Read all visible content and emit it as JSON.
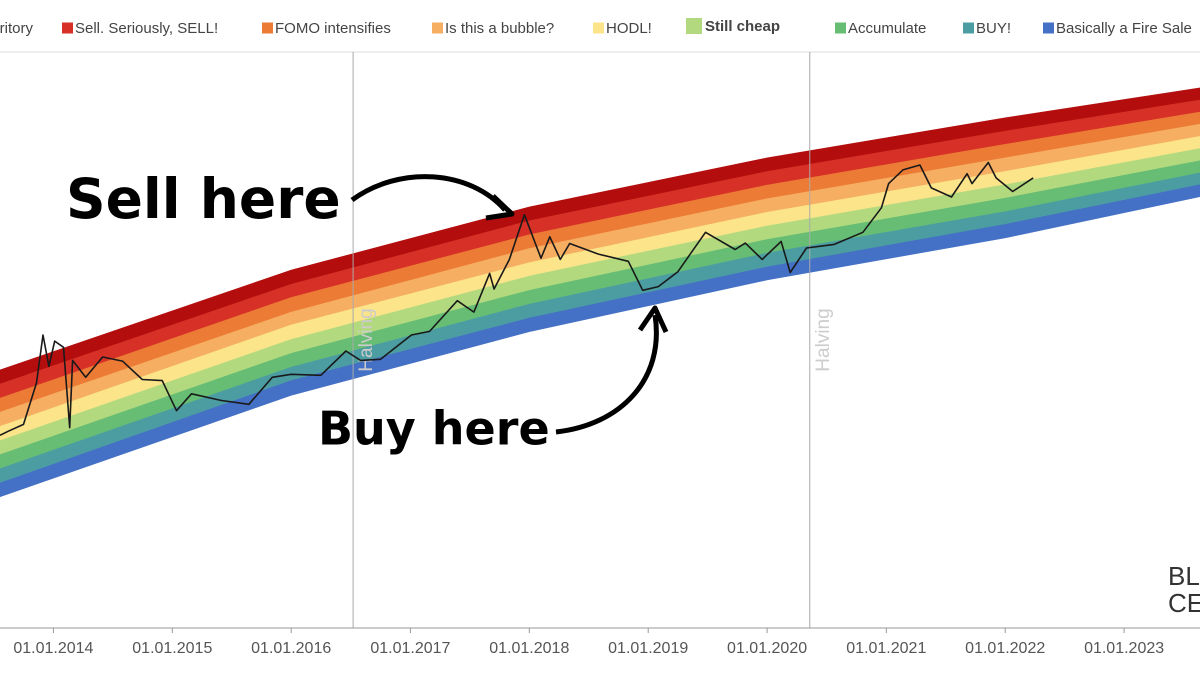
{
  "chart_data": {
    "type": "rainbow",
    "log_y": true,
    "xlim": [
      "2013-07-21",
      "2023-08-22"
    ],
    "ylim": [
      1,
      1000000
    ],
    "xticks": [
      {
        "value": "2014-01-01",
        "label": "01.01.2014"
      },
      {
        "value": "2015-01-01",
        "label": "01.01.2015"
      },
      {
        "value": "2016-01-01",
        "label": "01.01.2016"
      },
      {
        "value": "2017-01-01",
        "label": "01.01.2017"
      },
      {
        "value": "2018-01-01",
        "label": "01.01.2018"
      },
      {
        "value": "2019-01-01",
        "label": "01.01.2019"
      },
      {
        "value": "2020-01-01",
        "label": "01.01.2020"
      },
      {
        "value": "2021-01-01",
        "label": "01.01.2021"
      },
      {
        "value": "2022-01-01",
        "label": "01.01.2022"
      },
      {
        "value": "2023-01-01",
        "label": "01.01.2023"
      }
    ],
    "x": [
      "2013-07-21",
      "2016-01-01",
      "2018-01-01",
      "2020-01-01",
      "2022-01-01",
      "2023-08-22"
    ],
    "series": [
      {
        "name": "ritory",
        "color": "#b30d0d",
        "values": [
          478,
          5200,
          23500,
          76000,
          198000,
          405000
        ],
        "lows": [
          341,
          3700,
          16900,
          54800,
          144000,
          303000
        ]
      },
      {
        "name": "Sell. Seriously, SELL!",
        "color": "#d73027",
        "values": [
          341,
          3700,
          16900,
          54800,
          144000,
          303000
        ],
        "lows": [
          243,
          2700,
          12100,
          39600,
          105000,
          227000
        ]
      },
      {
        "name": "FOMO intensifies",
        "color": "#ec7b35",
        "values": [
          243,
          2700,
          12100,
          39600,
          105000,
          227000
        ],
        "lows": [
          174,
          1900,
          8700,
          28600,
          76000,
          170000
        ]
      },
      {
        "name": "Is this a bubble?",
        "color": "#f6ae62",
        "values": [
          174,
          1900,
          8700,
          28600,
          76000,
          170000
        ],
        "lows": [
          124,
          1400,
          6200,
          20700,
          55000,
          127000
        ]
      },
      {
        "name": "HODL!",
        "color": "#fbe48a",
        "values": [
          124,
          1400,
          6200,
          20700,
          55000,
          127000
        ],
        "lows": [
          88,
          990,
          4500,
          14900,
          40000,
          95000
        ]
      },
      {
        "name": "Still cheap",
        "color": "#b3d97f",
        "values": [
          88,
          990,
          4500,
          14900,
          40000,
          95000
        ],
        "lows": [
          63,
          710,
          3200,
          10800,
          29000,
          71000
        ]
      },
      {
        "name": "Accumulate",
        "color": "#66bd73",
        "values": [
          63,
          710,
          3200,
          10800,
          29000,
          71000
        ],
        "lows": [
          45,
          510,
          2300,
          7800,
          21000,
          53000
        ]
      },
      {
        "name": "BUY!",
        "color": "#4b9da2",
        "values": [
          45,
          510,
          2300,
          7800,
          21000,
          53000
        ],
        "lows": [
          32,
          370,
          1650,
          5600,
          15500,
          40000
        ]
      },
      {
        "name": "Basically a Fire Sale",
        "color": "#4470c5",
        "values": [
          32,
          370,
          1650,
          5600,
          15500,
          40000
        ],
        "lows": [
          23,
          260,
          1190,
          4100,
          11200,
          30000
        ]
      }
    ],
    "price": {
      "color": "#1a1a1a",
      "x": [
        "2013-07-21",
        "2013-08-15",
        "2013-10-01",
        "2013-11-10",
        "2013-11-30",
        "2013-12-18",
        "2014-01-05",
        "2014-02-01",
        "2014-02-20",
        "2014-03-01",
        "2014-04-10",
        "2014-06-01",
        "2014-08-01",
        "2014-10-01",
        "2014-12-01",
        "2015-01-14",
        "2015-03-01",
        "2015-06-01",
        "2015-08-24",
        "2015-11-04",
        "2016-01-01",
        "2016-04-01",
        "2016-06-17",
        "2016-08-01",
        "2016-10-01",
        "2017-01-04",
        "2017-03-01",
        "2017-05-25",
        "2017-07-15",
        "2017-09-01",
        "2017-09-15",
        "2017-11-01",
        "2017-12-17",
        "2018-02-06",
        "2018-03-05",
        "2018-04-06",
        "2018-05-05",
        "2018-08-01",
        "2018-11-01",
        "2018-12-15",
        "2019-02-01",
        "2019-04-02",
        "2019-06-26",
        "2019-09-25",
        "2019-10-26",
        "2019-12-17",
        "2020-02-13",
        "2020-03-12",
        "2020-05-01",
        "2020-07-25",
        "2020-10-21",
        "2020-12-17",
        "2021-01-08",
        "2021-02-21",
        "2021-04-14",
        "2021-05-19",
        "2021-07-20",
        "2021-09-06",
        "2021-09-21",
        "2021-11-10",
        "2021-12-04",
        "2022-01-24",
        "2022-03-28"
      ],
      "values": [
        100,
        110,
        130,
        350,
        1100,
        520,
        950,
        820,
        120,
        600,
        400,
        650,
        590,
        380,
        370,
        180,
        270,
        230,
        210,
        400,
        430,
        420,
        750,
        600,
        615,
        1100,
        1200,
        2500,
        1900,
        4800,
        3300,
        6700,
        19500,
        6900,
        11500,
        6700,
        9800,
        7600,
        6400,
        3200,
        3500,
        5000,
        12800,
        8500,
        9900,
        6700,
        10300,
        4900,
        8800,
        9600,
        12800,
        23000,
        41000,
        57000,
        64000,
        37000,
        29800,
        52000,
        41000,
        68000,
        47000,
        34000,
        47000
      ]
    },
    "halvings": [
      {
        "x": "2016-07-09",
        "label": "Halving"
      },
      {
        "x": "2020-05-11",
        "label": "Halving"
      }
    ],
    "callouts": [
      "Sell here",
      "Buy here"
    ],
    "watermark": [
      "BL",
      "CE"
    ]
  }
}
